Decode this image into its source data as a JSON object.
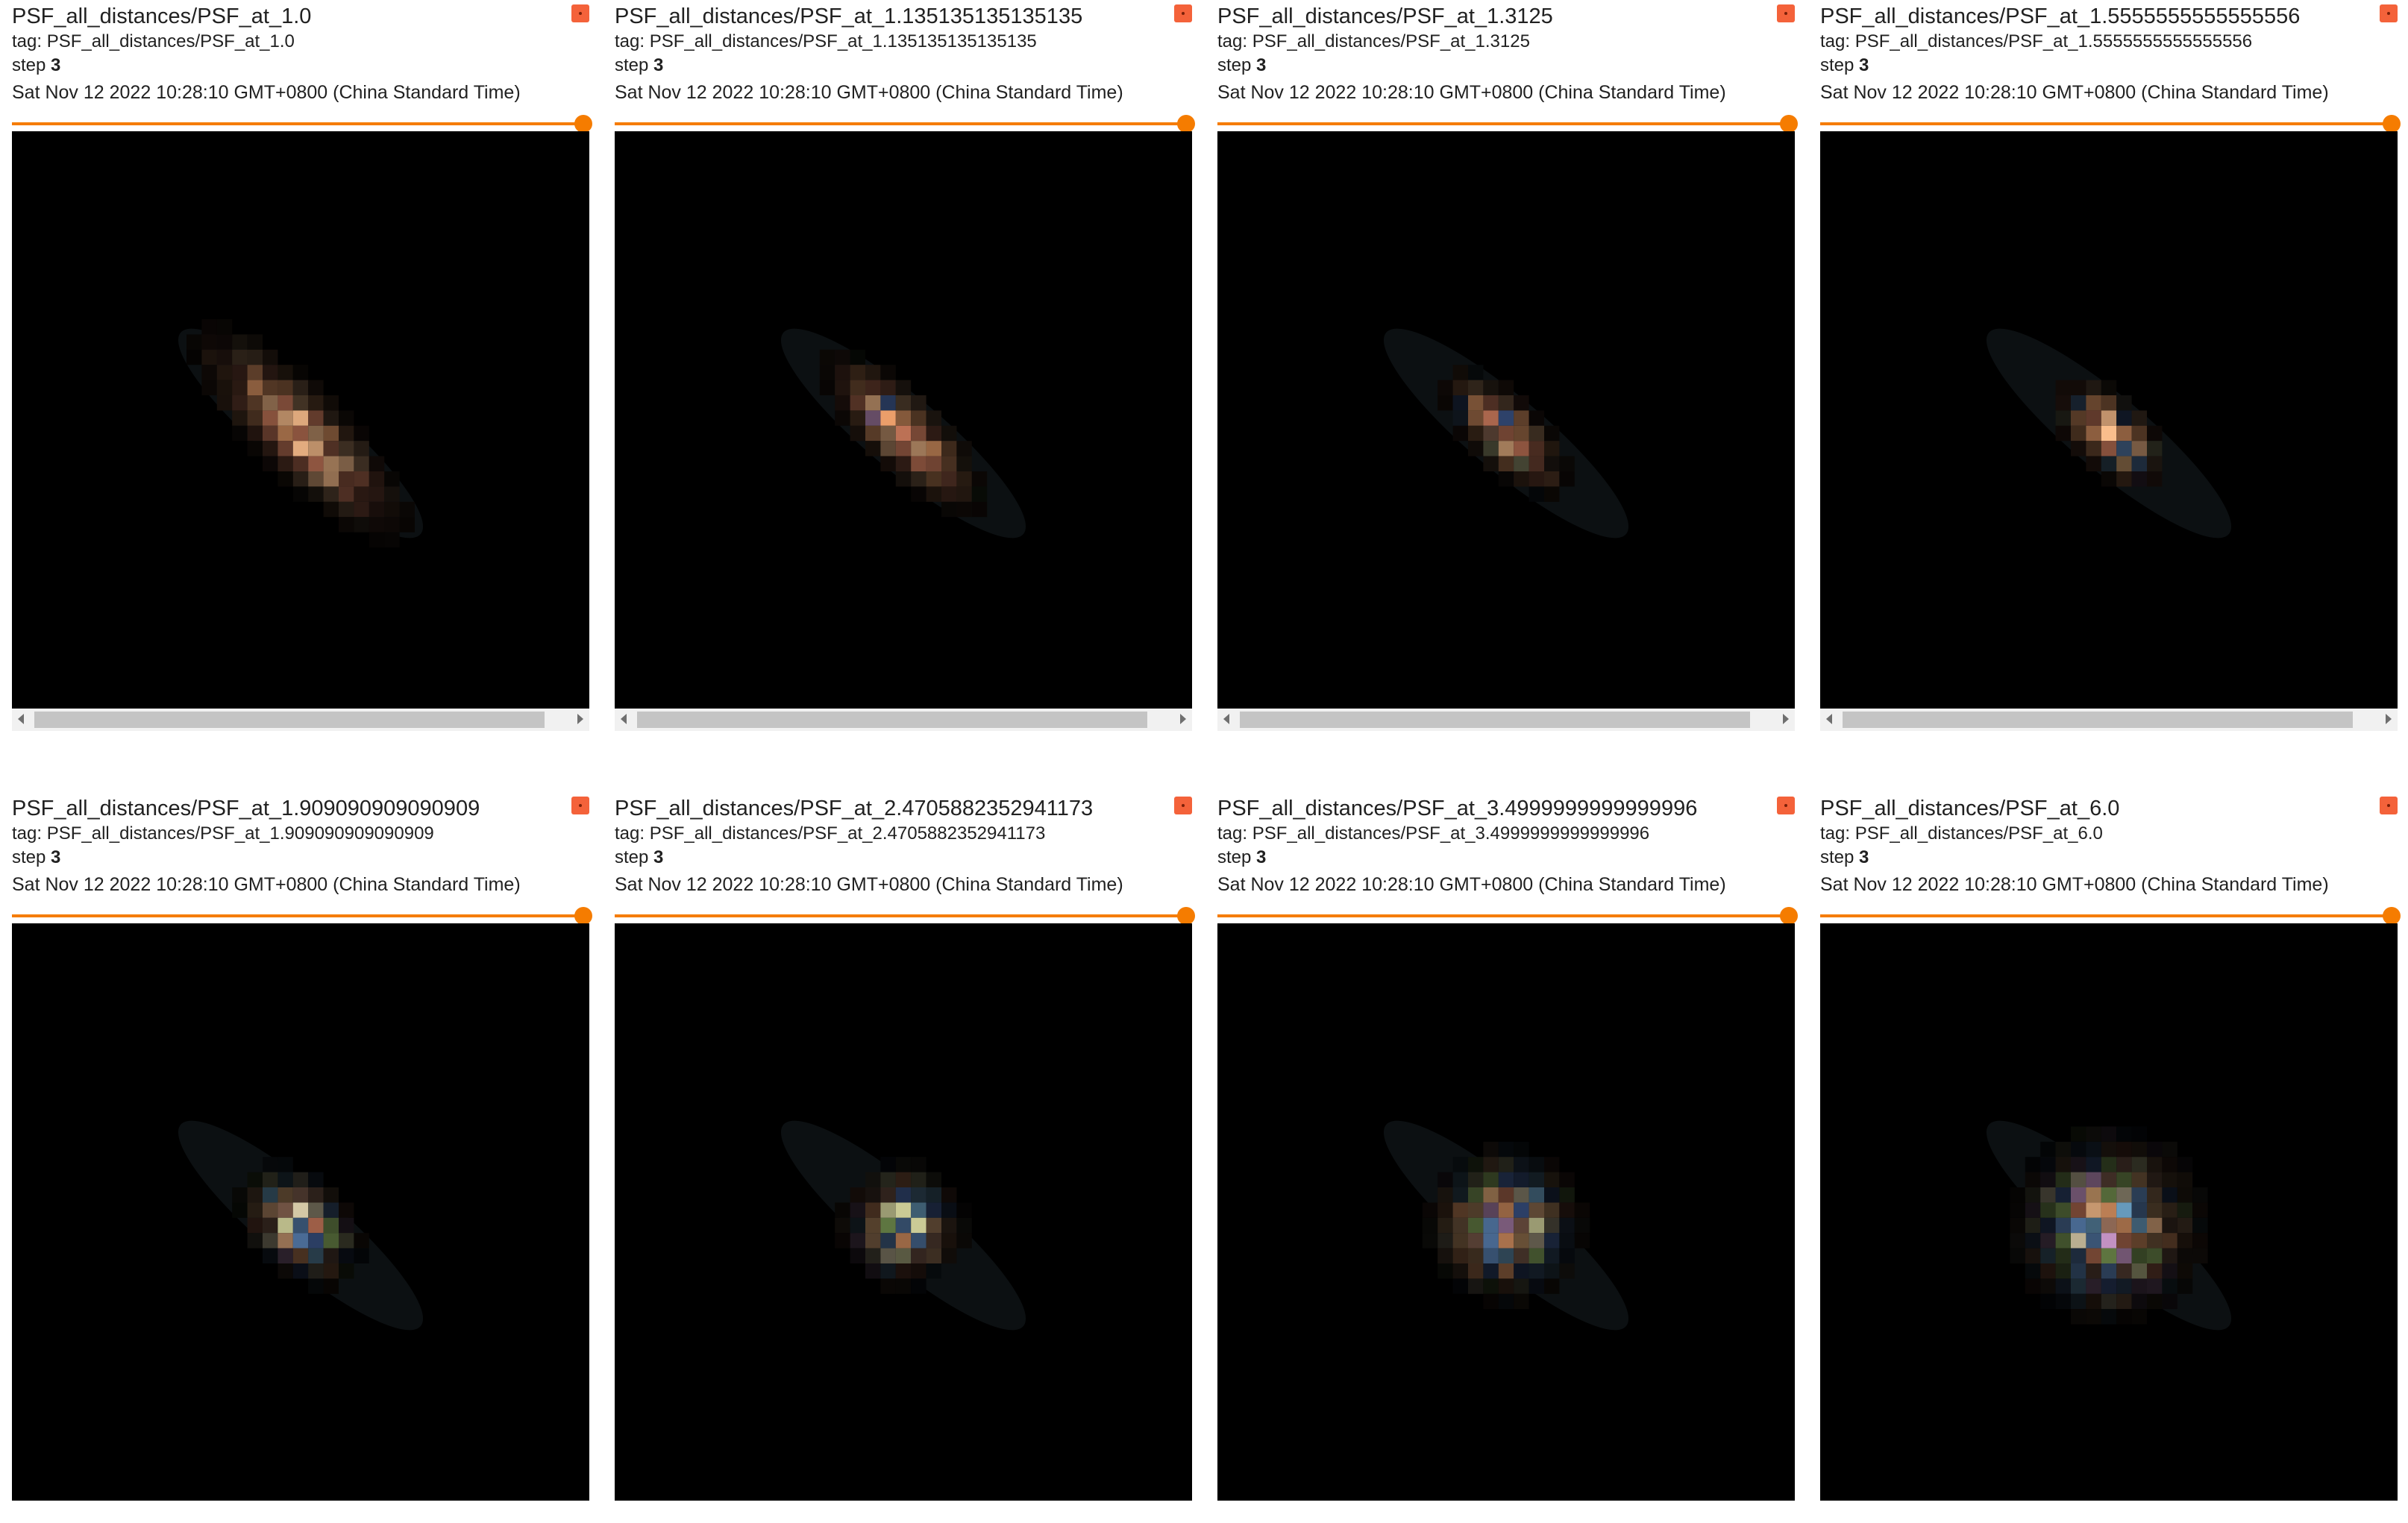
{
  "cards": [
    {
      "title": "PSF_all_distances/PSF_at_1.0",
      "tag": "tag: PSF_all_distances/PSF_at_1.0",
      "step_label": "step",
      "step_value": "3",
      "timestamp": "Sat Nov 12 2022 10:28:10 GMT+0800 (China Standard Time)",
      "step_position": 1.0,
      "pin_color": "#f4623a",
      "has_scrollbar": true
    },
    {
      "title": "PSF_all_distances/PSF_at_1.135135135135135",
      "tag": "tag: PSF_all_distances/PSF_at_1.135135135135135",
      "step_label": "step",
      "step_value": "3",
      "timestamp": "Sat Nov 12 2022 10:28:10 GMT+0800 (China Standard Time)",
      "step_position": 1.0,
      "pin_color": "#f4623a",
      "has_scrollbar": true
    },
    {
      "title": "PSF_all_distances/PSF_at_1.3125",
      "tag": "tag: PSF_all_distances/PSF_at_1.3125",
      "step_label": "step",
      "step_value": "3",
      "timestamp": "Sat Nov 12 2022 10:28:10 GMT+0800 (China Standard Time)",
      "step_position": 1.0,
      "pin_color": "#f4623a",
      "has_scrollbar": true
    },
    {
      "title": "PSF_all_distances/PSF_at_1.5555555555555556",
      "tag": "tag: PSF_all_distances/PSF_at_1.5555555555555556",
      "step_label": "step",
      "step_value": "3",
      "timestamp": "Sat Nov 12 2022 10:28:10 GMT+0800 (China Standard Time)",
      "step_position": 1.0,
      "pin_color": "#f4623a",
      "has_scrollbar": true
    },
    {
      "title": "PSF_all_distances/PSF_at_1.909090909090909",
      "tag": "tag: PSF_all_distances/PSF_at_1.909090909090909",
      "step_label": "step",
      "step_value": "3",
      "timestamp": "Sat Nov 12 2022 10:28:10 GMT+0800 (China Standard Time)",
      "step_position": 1.0,
      "pin_color": "#f4623a",
      "has_scrollbar": false
    },
    {
      "title": "PSF_all_distances/PSF_at_2.4705882352941173",
      "tag": "tag: PSF_all_distances/PSF_at_2.4705882352941173",
      "step_label": "step",
      "step_value": "3",
      "timestamp": "Sat Nov 12 2022 10:28:10 GMT+0800 (China Standard Time)",
      "step_position": 1.0,
      "pin_color": "#f4623a",
      "has_scrollbar": false
    },
    {
      "title": "PSF_all_distances/PSF_at_3.4999999999999996",
      "tag": "tag: PSF_all_distances/PSF_at_3.4999999999999996",
      "step_label": "step",
      "step_value": "3",
      "timestamp": "Sat Nov 12 2022 10:28:10 GMT+0800 (China Standard Time)",
      "step_position": 1.0,
      "pin_color": "#f4623a",
      "has_scrollbar": false
    },
    {
      "title": "PSF_all_distances/PSF_at_6.0",
      "tag": "tag: PSF_all_distances/PSF_at_6.0",
      "step_label": "step",
      "step_value": "3",
      "timestamp": "Sat Nov 12 2022 10:28:10 GMT+0800 (China Standard Time)",
      "step_position": 1.0,
      "pin_color": "#f4623a",
      "has_scrollbar": false
    }
  ],
  "colors": {
    "slider_accent": "#f57c00",
    "image_background": "#000000",
    "text": "#212121"
  },
  "icons": {
    "pin": "pin-icon",
    "scroll_left": "chevron-left-icon",
    "scroll_right": "chevron-right-icon"
  }
}
